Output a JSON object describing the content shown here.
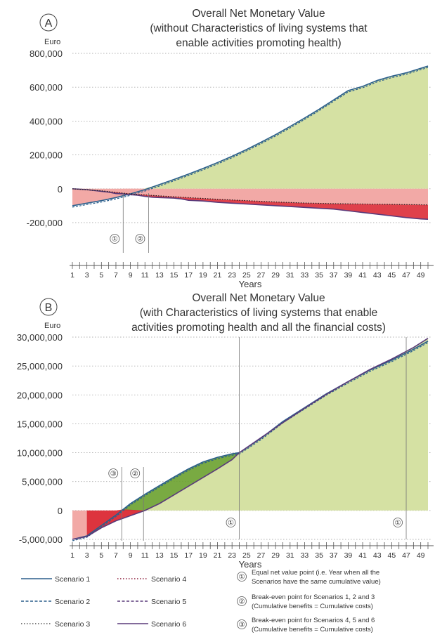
{
  "chart_data": [
    {
      "panel": "A",
      "type": "area",
      "title": "Overall Net Monetary Value",
      "subtitle": [
        "(without Characteristics of living systems that",
        "enable activities promoting health)"
      ],
      "ylabel": "Euro",
      "xlabel": "Years",
      "ylim": [
        -200000,
        800000
      ],
      "yticks": [
        {
          "v": 800000,
          "label": "800,000"
        },
        {
          "v": 600000,
          "label": "600,000"
        },
        {
          "v": 400000,
          "label": "400,000"
        },
        {
          "v": 200000,
          "label": "200,000"
        },
        {
          "v": 0,
          "label": "0"
        },
        {
          "v": -200000,
          "label": "-200,000"
        }
      ],
      "xticks": [
        "1",
        "3",
        "5",
        "7",
        "9",
        "11",
        "13",
        "15",
        "17",
        "19",
        "21",
        "23",
        "25",
        "27",
        "29",
        "31",
        "33",
        "35",
        "37",
        "39",
        "41",
        "43",
        "45",
        "47",
        "49"
      ],
      "grid": "dotted horizontal",
      "upper_series": {
        "x": [
          1,
          3,
          5,
          7,
          9,
          11,
          13,
          15,
          17,
          19,
          21,
          23,
          25,
          27,
          29,
          31,
          33,
          35,
          37,
          39,
          41,
          43,
          45,
          47,
          50
        ],
        "values": [
          -100000,
          -85000,
          -70000,
          -52000,
          -30000,
          -5000,
          25000,
          55000,
          87000,
          120000,
          155000,
          192000,
          232000,
          275000,
          320000,
          368000,
          418000,
          470000,
          525000,
          580000,
          605000,
          640000,
          665000,
          685000,
          725000
        ]
      },
      "lower_series": {
        "x": [
          1,
          3,
          5,
          6,
          7,
          8,
          9,
          10,
          11,
          12,
          13,
          15,
          16,
          17,
          19,
          21,
          23,
          25,
          27,
          29,
          31,
          33,
          35,
          37,
          39,
          41,
          43,
          45,
          47,
          49,
          50
        ],
        "values": [
          0,
          -5000,
          -15000,
          -20000,
          -28000,
          -30000,
          -35000,
          -38000,
          -45000,
          -50000,
          -52000,
          -55000,
          -60000,
          -68000,
          -72000,
          -80000,
          -85000,
          -90000,
          -95000,
          -100000,
          -105000,
          -110000,
          -115000,
          -120000,
          -130000,
          -140000,
          -150000,
          -160000,
          -170000,
          -178000,
          -180000
        ]
      },
      "lower_dotted": {
        "x": [
          1,
          5,
          9,
          13,
          17,
          21,
          25,
          29,
          33,
          37,
          41,
          45,
          50
        ],
        "values": [
          0,
          -12000,
          -30000,
          -42000,
          -52000,
          -62000,
          -70000,
          -78000,
          -84000,
          -88000,
          -90000,
          -92000,
          -95000
        ]
      },
      "markers": [
        {
          "x": 8,
          "label": "①"
        },
        {
          "x": 11.5,
          "label": "②"
        }
      ]
    },
    {
      "panel": "B",
      "type": "area",
      "title": "Overall Net Monetary Value",
      "subtitle": [
        "(with Characteristics of living systems that enable",
        "activities promoting health and all the financial costs)"
      ],
      "ylabel": "Euro",
      "xlabel": "Years",
      "ylim": [
        -5000000,
        30000000
      ],
      "yticks": [
        {
          "v": 30000000,
          "label": "30,000,000"
        },
        {
          "v": 25000000,
          "label": "25,000,000"
        },
        {
          "v": 20000000,
          "label": "20,000,000"
        },
        {
          "v": 15000000,
          "label": "15,000,000"
        },
        {
          "v": 10000000,
          "label": "10,000,000"
        },
        {
          "v": 5000000,
          "label": "5,000,000"
        },
        {
          "v": 0,
          "label": "0"
        },
        {
          "v": -5000000,
          "label": "-5,000,000"
        }
      ],
      "xticks": [
        "1",
        "3",
        "5",
        "7",
        "9",
        "11",
        "13",
        "15",
        "17",
        "19",
        "21",
        "23",
        "25",
        "27",
        "29",
        "31",
        "33",
        "35",
        "37",
        "39",
        "41",
        "43",
        "45",
        "47",
        "49"
      ],
      "grid": "dotted horizontal",
      "upper_series": {
        "x": [
          1,
          3,
          5,
          7,
          8,
          9,
          11,
          13,
          15,
          17,
          19,
          21,
          23,
          24,
          27,
          30,
          33,
          36,
          39,
          42,
          45,
          48,
          50
        ],
        "values": [
          -5000000,
          -4400000,
          -2600000,
          -800000,
          200000,
          1200000,
          2800000,
          4300000,
          5800000,
          7200000,
          8400000,
          9200000,
          9800000,
          10000000,
          12500000,
          15400000,
          17800000,
          20200000,
          22300000,
          24300000,
          26000000,
          27900000,
          29300000
        ]
      },
      "lower_series": {
        "x": [
          1,
          3,
          5,
          7,
          9,
          11,
          13,
          15,
          17,
          19,
          21,
          23,
          24,
          27,
          30,
          33,
          36,
          39,
          42,
          45,
          48,
          50
        ],
        "values": [
          -5000000,
          -4500000,
          -3000000,
          -1800000,
          -900000,
          0,
          1200000,
          2700000,
          4200000,
          5700000,
          7200000,
          8800000,
          10000000,
          12600000,
          15200000,
          17700000,
          20100000,
          22300000,
          24400000,
          26200000,
          28200000,
          29800000
        ]
      },
      "markers": [
        {
          "x": 7.8,
          "label": "③"
        },
        {
          "x": 10.8,
          "label": "②"
        },
        {
          "x": 24,
          "label": "①"
        },
        {
          "x": 47,
          "label": "①"
        }
      ]
    }
  ],
  "panel_a_letter": "A",
  "panel_b_letter": "B",
  "legend": {
    "scenarios": [
      {
        "label": "Scenario 1",
        "style": "solid",
        "color": "#2b5f8c"
      },
      {
        "label": "Scenario 4",
        "style": "dotted",
        "color": "#8b1c3a"
      },
      {
        "label": "Scenario 2",
        "style": "dashed",
        "color": "#2b5f8c"
      },
      {
        "label": "Scenario 5",
        "style": "dashed",
        "color": "#5a3a7a"
      },
      {
        "label": "Scenario 3",
        "style": "dotted",
        "color": "#555555"
      },
      {
        "label": "Scenario 6",
        "style": "solid",
        "color": "#5a3a7a"
      }
    ],
    "notes": [
      {
        "num": "①",
        "lines": [
          "Equal net value point (i.e. Year when all the",
          "Scenarios have the same cumulative value)"
        ]
      },
      {
        "num": "②",
        "lines": [
          "Break-even point for Scenarios 1, 2 and 3",
          "(Cumulative benefits = Cumulative costs)"
        ]
      },
      {
        "num": "③",
        "lines": [
          "Break-even point for Scenarios 4, 5 and 6",
          "(Cumulative benefits = Cumulative costs)"
        ]
      }
    ]
  },
  "colors": {
    "positive_fill": "#d5e1a3",
    "negative_fill": "#f2a9a6",
    "dark_red": "#d9202b",
    "dark_green": "#6aa12e",
    "line": "#2b5f8c",
    "grid": "#b0b0b0",
    "text": "#333333"
  }
}
